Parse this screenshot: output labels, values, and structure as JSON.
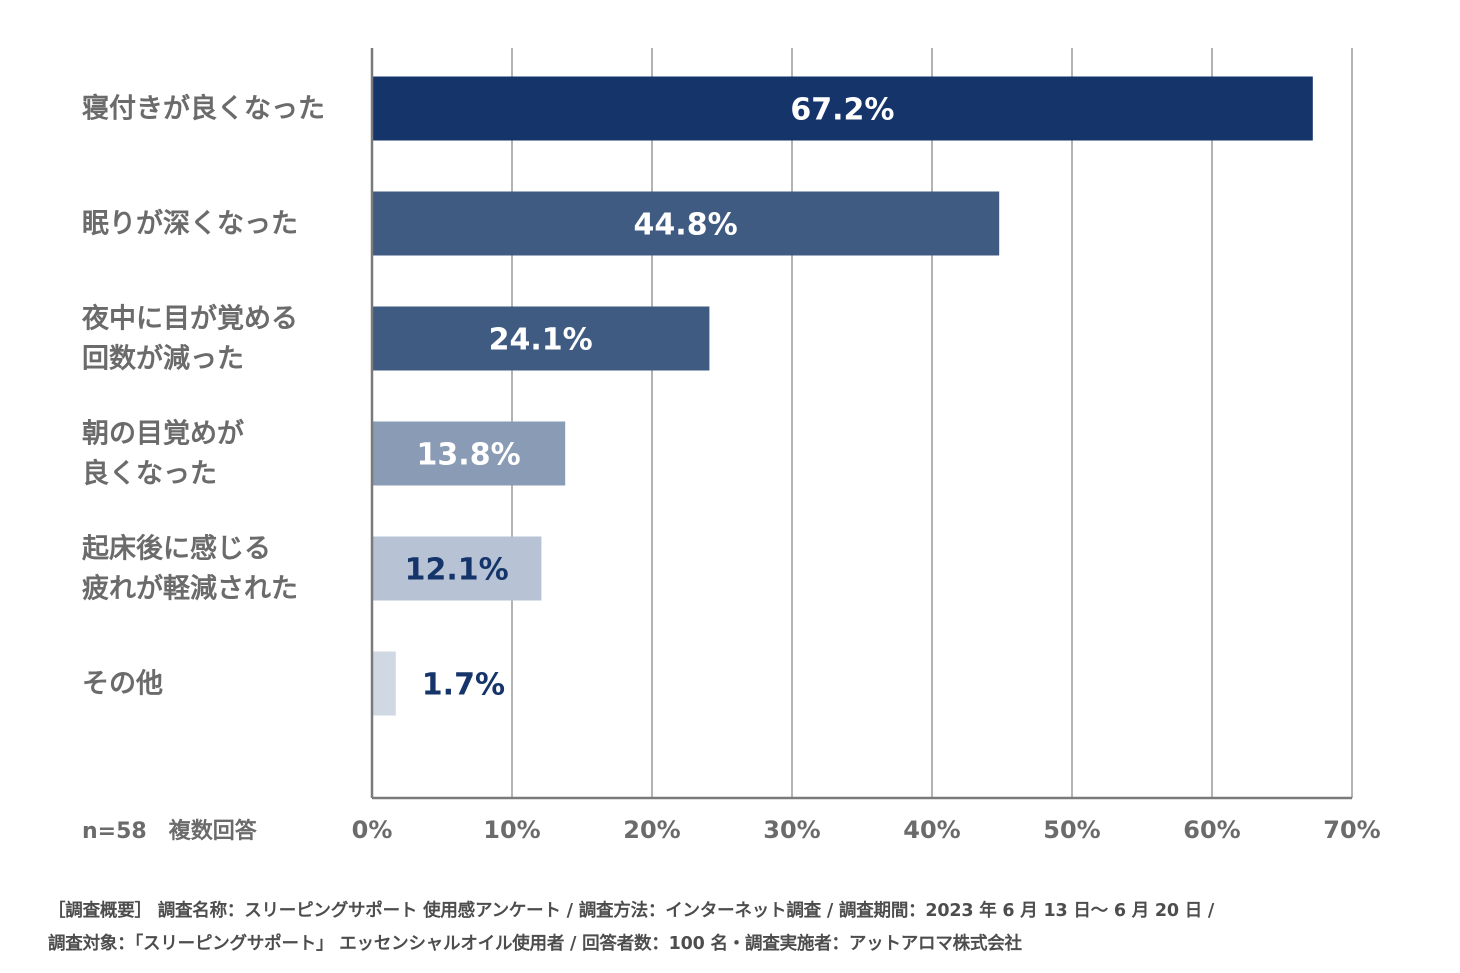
{
  "chart_data": {
    "type": "bar",
    "orientation": "horizontal",
    "categories": [
      [
        "寝付きが良くなった"
      ],
      [
        "眠りが深くなった"
      ],
      [
        "夜中に目が覚める",
        "回数が減った"
      ],
      [
        "朝の目覚めが",
        "良くなった"
      ],
      [
        "起床後に感じる",
        "疲れが軽減された"
      ],
      [
        "その他"
      ]
    ],
    "values": [
      67.2,
      44.8,
      24.1,
      13.8,
      12.1,
      1.7
    ],
    "value_labels": [
      "67.2%",
      "44.8%",
      "24.1%",
      "13.8%",
      "12.1%",
      "1.7%"
    ],
    "bar_colors": [
      "#14346a",
      "#405b82",
      "#405b82",
      "#8a9bb5",
      "#b7c3d4",
      "#d0d8e3"
    ],
    "label_colors": [
      "#ffffff",
      "#ffffff",
      "#ffffff",
      "#ffffff",
      "#14346a",
      "#14346a"
    ],
    "xlim": [
      0,
      70
    ],
    "x_ticks": [
      0,
      10,
      20,
      30,
      40,
      50,
      60,
      70
    ],
    "x_tick_labels": [
      "0%",
      "10%",
      "20%",
      "30%",
      "40%",
      "50%",
      "60%",
      "70%"
    ],
    "grid": true,
    "grid_color": "#9a9a9a",
    "axis_color": "#7a7a7a",
    "note": "n=58　複数回答",
    "title": "",
    "xlabel": "",
    "ylabel": ""
  },
  "footer": {
    "line1": "［調査概要］ 調査名称：スリーピングサポート 使用感アンケート / 調査方法：インターネット調査 / 調査期間：2023 年 6 月 13 日〜 6 月 20 日 /",
    "line2": "調査対象：「スリーピングサポート」 エッセンシャルオイル使用者 / 回答者数：100 名・調査実施者：アットアロマ株式会社"
  }
}
